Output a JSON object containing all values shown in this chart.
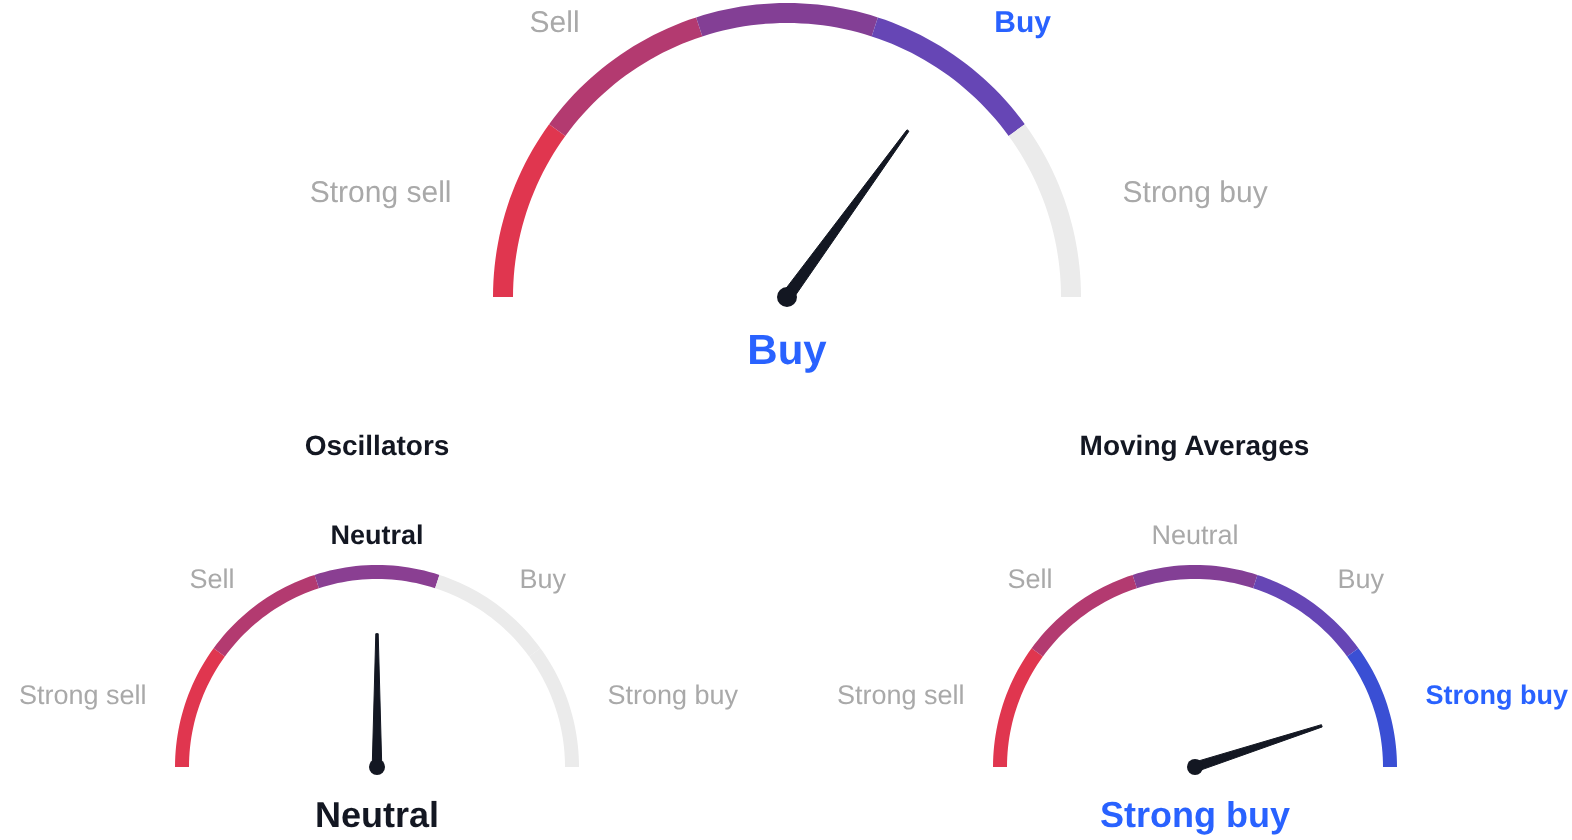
{
  "chart_data": [
    {
      "type": "donut",
      "categories": [
        "Strong sell",
        "Sell",
        null,
        "Buy",
        "Strong buy"
      ],
      "values": [
        20,
        20,
        20,
        20,
        20
      ],
      "colors": [
        "#e0364f",
        "#b33a70",
        "#833f95",
        "#6646b5",
        "#ebebeb"
      ],
      "needle": "Buy"
    },
    {
      "type": "donut",
      "title": "Oscillators",
      "categories": [
        "Strong sell",
        "Sell",
        "Neutral",
        "Buy",
        "Strong buy"
      ],
      "values": [
        20,
        20,
        20,
        20,
        20
      ],
      "colors": [
        "#e0364f",
        "#b33a70",
        "#8a3f92",
        "#ebebeb",
        "#ebebeb"
      ],
      "needle": "Neutral"
    },
    {
      "type": "donut",
      "title": "Moving Averages",
      "categories": [
        "Strong sell",
        "Sell",
        "Neutral",
        "Buy",
        "Strong buy"
      ],
      "values": [
        20,
        20,
        20,
        20,
        20
      ],
      "colors": [
        "#e0364f",
        "#b33a70",
        "#833f95",
        "#6646b5",
        "#3a4fd4"
      ],
      "needle": "Strong buy"
    }
  ]
}
